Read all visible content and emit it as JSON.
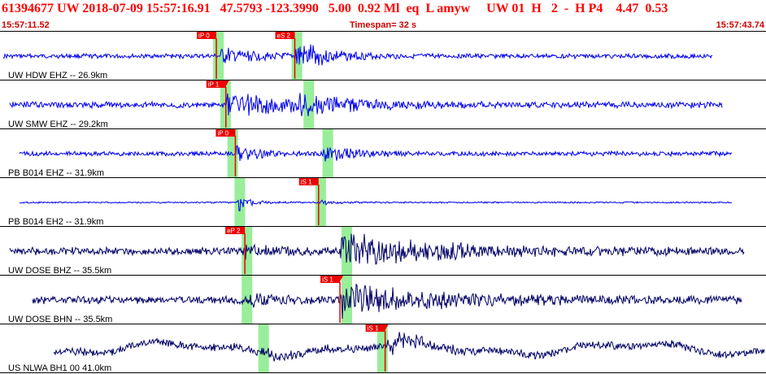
{
  "header": {
    "title": "61394677 UW 2018-07-09 15:57:16.91   47.5793 -123.3990   5.00  0.92 Ml  eq  L amyw     UW 01  H   2  -  H P4    4.47  0.53",
    "start_time": "15:57:11.52",
    "timespan": "Timespan=  32 s",
    "end_time": "15:57:43.74"
  },
  "colors": {
    "trace_blue": "#0000ee",
    "trace_navy": "#000066",
    "pick_red": "#ee0000",
    "window_green": "#99ee99",
    "header_red": "#ff0000"
  },
  "icons": {
    "pick_marker": "red-triangle-icon"
  },
  "channels": [
    {
      "label": "UW HDW EHZ -- 26.9km",
      "color": "blue",
      "picks": [
        {
          "label": "iP 0",
          "t": 9.1,
          "triangle": false
        },
        {
          "label": "eS 2",
          "t": 12.4,
          "triangle": false
        }
      ],
      "windows": [
        9.0,
        12.3
      ]
    },
    {
      "label": "UW SMW EHZ -- 29.2km",
      "color": "blue",
      "picks": [
        {
          "label": "iP 1",
          "t": 9.5,
          "triangle": true
        }
      ],
      "windows": [
        9.3,
        12.8
      ]
    },
    {
      "label": "PB B014 EHZ -- 31.9km",
      "color": "blue",
      "picks": [
        {
          "label": "iP 0",
          "t": 9.9,
          "triangle": false
        }
      ],
      "windows": [
        9.6,
        13.6
      ]
    },
    {
      "label": "PB B014 EH2 -- 31.9km",
      "color": "blue",
      "picks": [
        {
          "label": "iS 1",
          "t": 13.4,
          "triangle": false
        }
      ],
      "windows": [
        9.9,
        13.3
      ]
    },
    {
      "label": "UW DOSE BHZ -- 35.5km",
      "color": "navy",
      "picks": [
        {
          "label": "eP 2",
          "t": 10.3,
          "triangle": false
        }
      ],
      "windows": [
        10.2,
        14.4
      ]
    },
    {
      "label": "UW DOSE BHN -- 35.5km",
      "color": "navy",
      "picks": [
        {
          "label": "iS 1",
          "t": 14.3,
          "triangle": true
        }
      ],
      "windows": [
        10.2,
        14.4
      ]
    },
    {
      "label": "US NLWA BH1 00 41.0km",
      "color": "navy",
      "picks": [
        {
          "label": "iS 1",
          "t": 16.2,
          "triangle": true
        }
      ],
      "windows": [
        10.9,
        15.9
      ]
    }
  ]
}
